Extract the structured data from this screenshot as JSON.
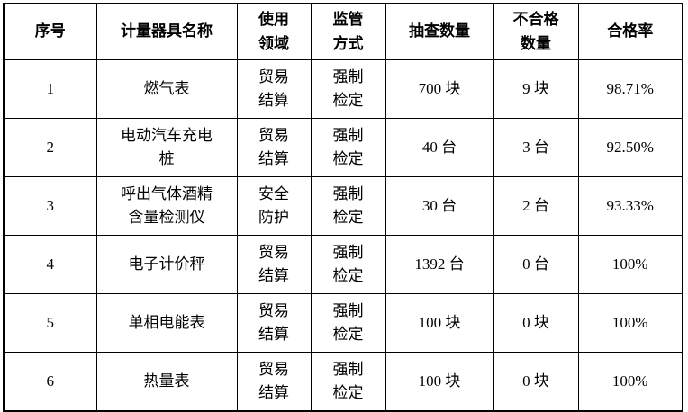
{
  "colors": {
    "background": "#ffffff",
    "border": "#000000",
    "text": "#000000"
  },
  "table": {
    "headers": {
      "index": "序号",
      "name": "计量器具名称",
      "field": "使用\n领域",
      "method": "监管\n方式",
      "sampled": "抽查数量",
      "failed": "不合格\n数量",
      "rate": "合格率"
    },
    "rows": [
      [
        "1",
        "燃气表",
        "贸易\n结算",
        "强制\n检定",
        "700 块",
        "9 块",
        "98.71%"
      ],
      [
        "2",
        "电动汽车充电\n桩",
        "贸易\n结算",
        "强制\n检定",
        "40 台",
        "3 台",
        "92.50%"
      ],
      [
        "3",
        "呼出气体酒精\n含量检测仪",
        "安全\n防护",
        "强制\n检定",
        "30 台",
        "2 台",
        "93.33%"
      ],
      [
        "4",
        "电子计价秤",
        "贸易\n结算",
        "强制\n检定",
        "1392 台",
        "0 台",
        "100%"
      ],
      [
        "5",
        "单相电能表",
        "贸易\n结算",
        "强制\n检定",
        "100 块",
        "0 块",
        "100%"
      ],
      [
        "6",
        "热量表",
        "贸易\n结算",
        "强制\n检定",
        "100 块",
        "0 块",
        "100%"
      ]
    ]
  }
}
